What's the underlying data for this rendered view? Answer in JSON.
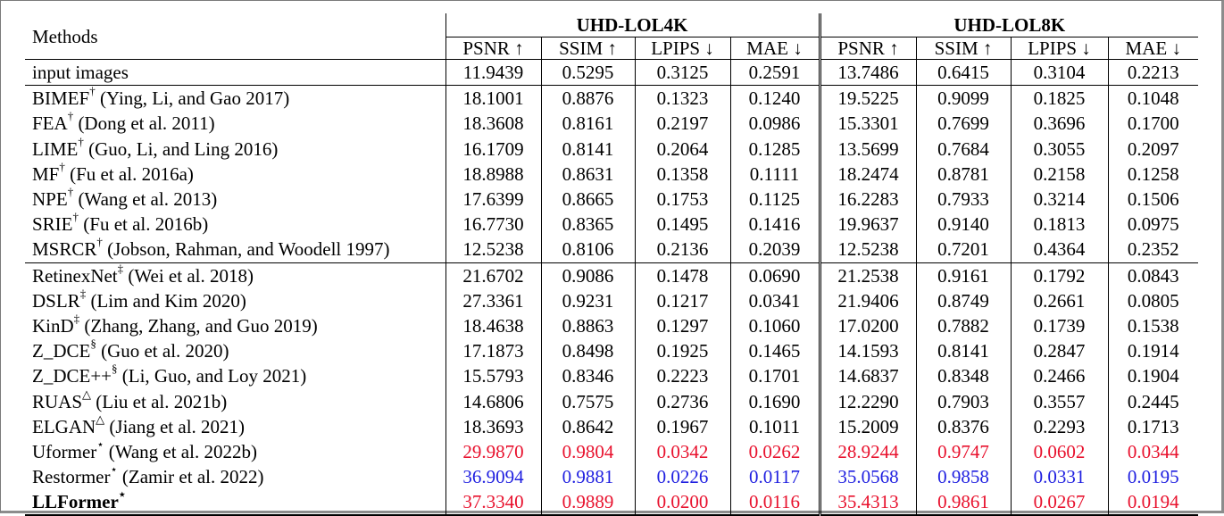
{
  "header": {
    "methods_label": "Methods",
    "group_a": "UHD-LOL4K",
    "group_b": "UHD-LOL8K",
    "metrics": [
      "PSNR ↑",
      "SSIM ↑",
      "LPIPS ↓",
      "MAE ↓",
      "PSNR ↑",
      "SSIM ↑",
      "LPIPS ↓",
      "MAE ↓"
    ]
  },
  "rows": [
    {
      "name": "input images",
      "sup": "",
      "cite": "",
      "style": "",
      "vals": [
        "11.9439",
        "0.5295",
        "0.3125",
        "0.2591",
        "13.7486",
        "0.6415",
        "0.3104",
        "0.2213"
      ]
    },
    {
      "name": "BIMEF",
      "sup": "†",
      "cite": " (Ying, Li, and Gao 2017)",
      "style": "",
      "vals": [
        "18.1001",
        "0.8876",
        "0.1323",
        "0.1240",
        "19.5225",
        "0.9099",
        "0.1825",
        "0.1048"
      ]
    },
    {
      "name": "FEA",
      "sup": "†",
      "cite": " (Dong et al. 2011)",
      "style": "",
      "vals": [
        "18.3608",
        "0.8161",
        "0.2197",
        "0.0986",
        "15.3301",
        "0.7699",
        "0.3696",
        "0.1700"
      ]
    },
    {
      "name": "LIME",
      "sup": "†",
      "cite": " (Guo, Li, and Ling 2016)",
      "style": "",
      "vals": [
        "16.1709",
        "0.8141",
        "0.2064",
        "0.1285",
        "13.5699",
        "0.7684",
        "0.3055",
        "0.2097"
      ]
    },
    {
      "name": "MF",
      "sup": "†",
      "cite": " (Fu et al. 2016a)",
      "style": "",
      "vals": [
        "18.8988",
        "0.8631",
        "0.1358",
        "0.1111",
        "18.2474",
        "0.8781",
        "0.2158",
        "0.1258"
      ]
    },
    {
      "name": "NPE",
      "sup": "†",
      "cite": " (Wang et al. 2013)",
      "style": "",
      "vals": [
        "17.6399",
        "0.8665",
        "0.1753",
        "0.1125",
        "16.2283",
        "0.7933",
        "0.3214",
        "0.1506"
      ]
    },
    {
      "name": "SRIE",
      "sup": "†",
      "cite": " (Fu et al. 2016b)",
      "style": "",
      "vals": [
        "16.7730",
        "0.8365",
        "0.1495",
        "0.1416",
        "19.9637",
        "0.9140",
        "0.1813",
        "0.0975"
      ]
    },
    {
      "name": "MSRCR",
      "sup": "†",
      "cite": " (Jobson, Rahman, and Woodell 1997)",
      "style": "",
      "vals": [
        "12.5238",
        "0.8106",
        "0.2136",
        "0.2039",
        "12.5238",
        "0.7201",
        "0.4364",
        "0.2352"
      ]
    },
    {
      "name": "RetinexNet",
      "sup": "‡",
      "cite": " (Wei et al. 2018)",
      "style": "",
      "vals": [
        "21.6702",
        "0.9086",
        "0.1478",
        "0.0690",
        "21.2538",
        "0.9161",
        "0.1792",
        "0.0843"
      ]
    },
    {
      "name": "DSLR",
      "sup": "‡",
      "cite": " (Lim and Kim 2020)",
      "style": "",
      "vals": [
        "27.3361",
        "0.9231",
        "0.1217",
        "0.0341",
        "21.9406",
        "0.8749",
        "0.2661",
        "0.0805"
      ]
    },
    {
      "name": "KinD",
      "sup": "‡",
      "cite": " (Zhang, Zhang, and Guo 2019)",
      "style": "",
      "vals": [
        "18.4638",
        "0.8863",
        "0.1297",
        "0.1060",
        "17.0200",
        "0.7882",
        "0.1739",
        "0.1538"
      ]
    },
    {
      "name": "Z_DCE",
      "sup": "§",
      "cite": " (Guo et al. 2020)",
      "style": "",
      "vals": [
        "17.1873",
        "0.8498",
        "0.1925",
        "0.1465",
        "14.1593",
        "0.8141",
        "0.2847",
        "0.1914"
      ]
    },
    {
      "name": "Z_DCE++",
      "sup": "§",
      "cite": " (Li, Guo, and Loy 2021)",
      "style": "",
      "vals": [
        "15.5793",
        "0.8346",
        "0.2223",
        "0.1701",
        "14.6837",
        "0.8348",
        "0.2466",
        "0.1904"
      ]
    },
    {
      "name": "RUAS",
      "sup": "△",
      "cite": " (Liu et al. 2021b)",
      "style": "",
      "vals": [
        "14.6806",
        "0.7575",
        "0.2736",
        "0.1690",
        "12.2290",
        "0.7903",
        "0.3557",
        "0.2445"
      ]
    },
    {
      "name": "ELGAN",
      "sup": "△",
      "cite": " (Jiang et al. 2021)",
      "style": "",
      "vals": [
        "18.3693",
        "0.8642",
        "0.1967",
        "0.1011",
        "15.2009",
        "0.8376",
        "0.2293",
        "0.1713"
      ]
    },
    {
      "name": "Uformer",
      "sup": "⋆",
      "cite": " (Wang et al. 2022b)",
      "style": "red",
      "vals": [
        "29.9870",
        "0.9804",
        "0.0342",
        "0.0262",
        "28.9244",
        "0.9747",
        "0.0602",
        "0.0344"
      ]
    },
    {
      "name": "Restormer",
      "sup": "⋆",
      "cite": " (Zamir et al. 2022)",
      "style": "blue",
      "vals": [
        "36.9094",
        "0.9881",
        "0.0226",
        "0.0117",
        "35.0568",
        "0.9858",
        "0.0331",
        "0.0195"
      ]
    },
    {
      "name": "LLFormer",
      "sup": "⋆",
      "cite": "",
      "style": "red",
      "bold": true,
      "vals": [
        "37.3340",
        "0.9889",
        "0.0200",
        "0.0116",
        "35.4313",
        "0.9861",
        "0.0267",
        "0.0194"
      ]
    }
  ]
}
